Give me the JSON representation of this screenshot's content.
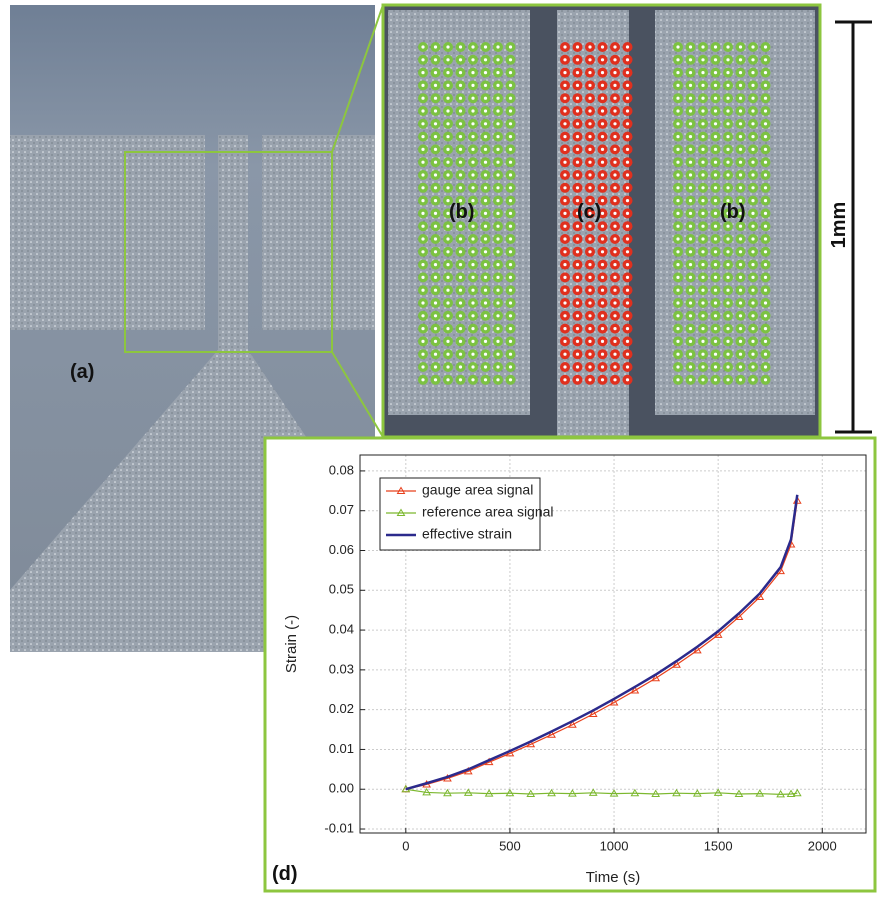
{
  "image_labels": {
    "a": "(a)",
    "b_left": "(b)",
    "c": "(c)",
    "b_right": "(b)",
    "scale": "1mm",
    "d": "(d)"
  },
  "chart_data": {
    "type": "line",
    "x_label": "Time (s)",
    "y_label": "Strain (-)",
    "x": [
      0,
      100,
      200,
      300,
      400,
      500,
      600,
      700,
      800,
      900,
      1000,
      1100,
      1200,
      1300,
      1400,
      1500,
      1600,
      1700,
      1800,
      1850,
      1880
    ],
    "series": [
      {
        "name": "gauge area signal",
        "color": "#e8401c",
        "marker": "triangle",
        "values": [
          0,
          0.0012,
          0.0027,
          0.0045,
          0.0068,
          0.009,
          0.0113,
          0.0137,
          0.0162,
          0.0189,
          0.0218,
          0.0248,
          0.0279,
          0.0313,
          0.0349,
          0.0388,
          0.0433,
          0.0483,
          0.0548,
          0.0615,
          0.0725
        ]
      },
      {
        "name": "reference area signal",
        "color": "#7cb82f",
        "marker": "triangle",
        "values": [
          0,
          -0.0008,
          -0.001,
          -0.0009,
          -0.0011,
          -0.001,
          -0.0012,
          -0.001,
          -0.0011,
          -0.0009,
          -0.0011,
          -0.001,
          -0.0012,
          -0.001,
          -0.0011,
          -0.0009,
          -0.0012,
          -0.0011,
          -0.0013,
          -0.0012,
          -0.001
        ]
      },
      {
        "name": "effective strain",
        "color": "#2b2a8c",
        "marker": "none",
        "values": [
          0,
          0.0015,
          0.0031,
          0.005,
          0.0073,
          0.0096,
          0.012,
          0.0145,
          0.0171,
          0.0198,
          0.0227,
          0.0257,
          0.0288,
          0.0322,
          0.0358,
          0.0397,
          0.0442,
          0.0492,
          0.0558,
          0.0628,
          0.074
        ]
      }
    ],
    "xlim": [
      -220,
      2210
    ],
    "ylim": [
      -0.011,
      0.084
    ],
    "xticks": [
      0,
      500,
      1000,
      1500,
      2000
    ],
    "yticks": [
      {
        "value": -0.01,
        "label": "-0.01"
      },
      {
        "value": 0,
        "label": "0.00"
      },
      {
        "value": 0.01,
        "label": "0.01"
      },
      {
        "value": 0.02,
        "label": "0.02"
      },
      {
        "value": 0.03,
        "label": "0.03"
      },
      {
        "value": 0.04,
        "label": "0.04"
      },
      {
        "value": 0.05,
        "label": "0.05"
      },
      {
        "value": 0.06,
        "label": "0.06"
      },
      {
        "value": 0.07,
        "label": "0.07"
      },
      {
        "value": 0.08,
        "label": "0.08"
      }
    ],
    "grid": true,
    "legend": "upper left"
  }
}
